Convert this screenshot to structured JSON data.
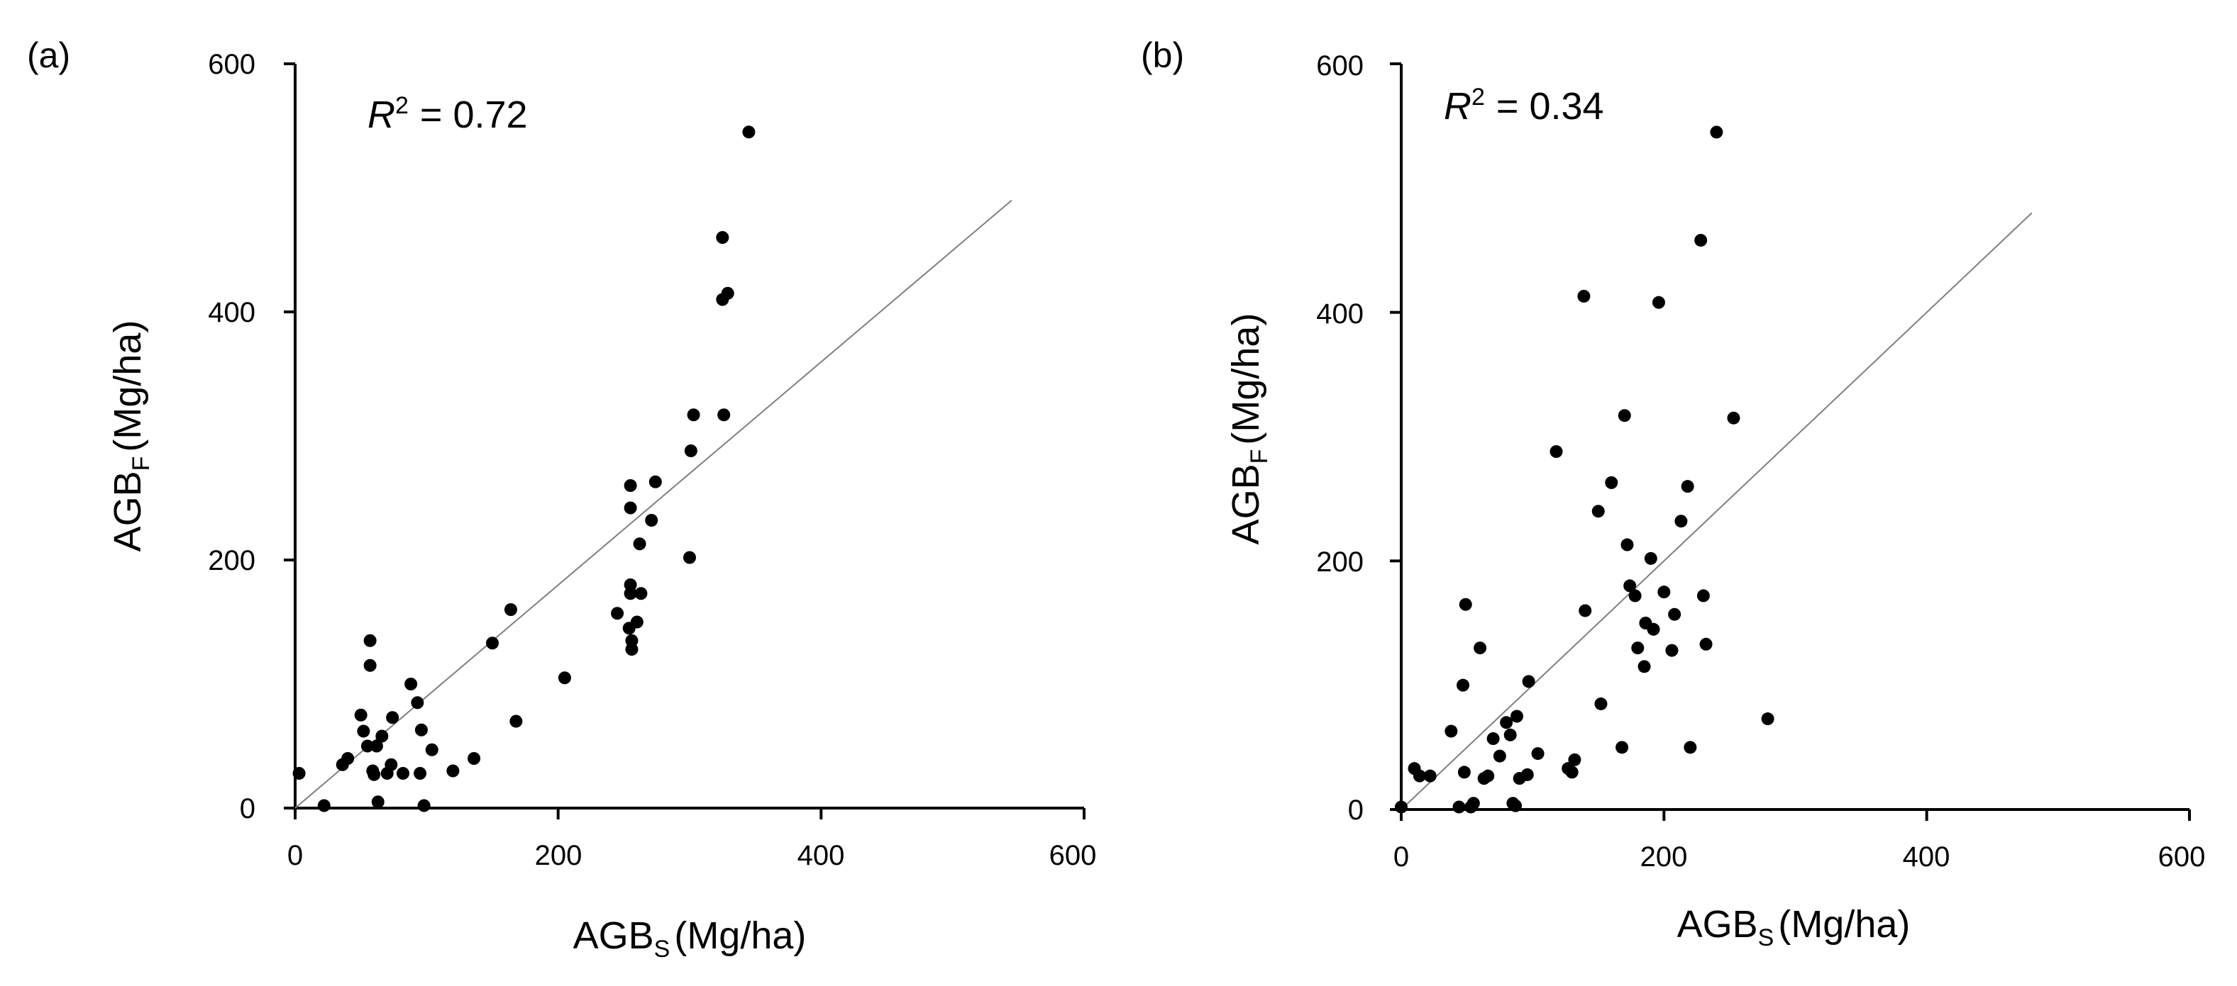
{
  "colors": {
    "axis": "#000000",
    "point": "#000000",
    "line": "#7f7f7f",
    "background": "#ffffff"
  },
  "chart_data": [
    {
      "type": "scatter",
      "panel_label": "(a)",
      "r2_symbol": "R",
      "r2_exponent": "2",
      "r2_value": "= 0.72",
      "xlabel": {
        "base": "AGB",
        "sub": "S",
        "unit": "(Mg/ha)"
      },
      "ylabel": {
        "base": "AGB",
        "sub": "F",
        "unit": "(Mg/ha)"
      },
      "xlim": [
        0,
        600
      ],
      "ylim": [
        0,
        600
      ],
      "xticks": [
        "0",
        "200",
        "400",
        "600"
      ],
      "yticks": [
        "0",
        "200",
        "400",
        "600"
      ],
      "reference_line": {
        "x": [
          0,
          545
        ],
        "y": [
          0,
          490
        ]
      },
      "points": [
        [
          3,
          28
        ],
        [
          22,
          2
        ],
        [
          36,
          35
        ],
        [
          40,
          40
        ],
        [
          50,
          75
        ],
        [
          52,
          62
        ],
        [
          55,
          50
        ],
        [
          57,
          135
        ],
        [
          57,
          115
        ],
        [
          59,
          30
        ],
        [
          60,
          27
        ],
        [
          62,
          50
        ],
        [
          63,
          5
        ],
        [
          66,
          58
        ],
        [
          70,
          28
        ],
        [
          73,
          35
        ],
        [
          74,
          73
        ],
        [
          82,
          28
        ],
        [
          88,
          100
        ],
        [
          93,
          85
        ],
        [
          95,
          28
        ],
        [
          96,
          63
        ],
        [
          98,
          2
        ],
        [
          104,
          47
        ],
        [
          120,
          30
        ],
        [
          136,
          40
        ],
        [
          150,
          133
        ],
        [
          164,
          160
        ],
        [
          168,
          70
        ],
        [
          205,
          105
        ],
        [
          245,
          157
        ],
        [
          254,
          145
        ],
        [
          255,
          180
        ],
        [
          255,
          173
        ],
        [
          255,
          260
        ],
        [
          255,
          242
        ],
        [
          256,
          135
        ],
        [
          256,
          128
        ],
        [
          260,
          150
        ],
        [
          262,
          213
        ],
        [
          263,
          173
        ],
        [
          271,
          232
        ],
        [
          274,
          263
        ],
        [
          300,
          202
        ],
        [
          301,
          288
        ],
        [
          303,
          317
        ],
        [
          325,
          460
        ],
        [
          325,
          410
        ],
        [
          326,
          317
        ],
        [
          329,
          415
        ],
        [
          345,
          545
        ]
      ]
    },
    {
      "type": "scatter",
      "panel_label": "(b)",
      "r2_symbol": "R",
      "r2_exponent": "2",
      "r2_value": "= 0.34",
      "xlabel": {
        "base": "AGB",
        "sub": "S",
        "unit": "(Mg/ha)"
      },
      "ylabel": {
        "base": "AGB",
        "sub": "F",
        "unit": "(Mg/ha)"
      },
      "xlim": [
        0,
        600
      ],
      "ylim": [
        0,
        600
      ],
      "xticks": [
        "0",
        "200",
        "400",
        "600"
      ],
      "yticks": [
        "0",
        "200",
        "400",
        "600"
      ],
      "reference_line": {
        "x": [
          0,
          480
        ],
        "y": [
          0,
          480
        ]
      },
      "points": [
        [
          0,
          2
        ],
        [
          10,
          33
        ],
        [
          14,
          27
        ],
        [
          22,
          27
        ],
        [
          38,
          63
        ],
        [
          44,
          2
        ],
        [
          47,
          100
        ],
        [
          48,
          30
        ],
        [
          49,
          165
        ],
        [
          53,
          2
        ],
        [
          55,
          5
        ],
        [
          60,
          130
        ],
        [
          63,
          25
        ],
        [
          66,
          27
        ],
        [
          70,
          57
        ],
        [
          75,
          43
        ],
        [
          80,
          70
        ],
        [
          83,
          60
        ],
        [
          85,
          5
        ],
        [
          87,
          3
        ],
        [
          88,
          75
        ],
        [
          90,
          25
        ],
        [
          96,
          28
        ],
        [
          97,
          103
        ],
        [
          104,
          45
        ],
        [
          118,
          288
        ],
        [
          127,
          33
        ],
        [
          130,
          30
        ],
        [
          132,
          40
        ],
        [
          139,
          413
        ],
        [
          140,
          160
        ],
        [
          150,
          240
        ],
        [
          152,
          85
        ],
        [
          160,
          263
        ],
        [
          168,
          50
        ],
        [
          170,
          317
        ],
        [
          172,
          213
        ],
        [
          174,
          180
        ],
        [
          178,
          172
        ],
        [
          180,
          130
        ],
        [
          185,
          115
        ],
        [
          186,
          150
        ],
        [
          190,
          202
        ],
        [
          192,
          145
        ],
        [
          196,
          408
        ],
        [
          200,
          175
        ],
        [
          206,
          128
        ],
        [
          208,
          157
        ],
        [
          213,
          232
        ],
        [
          218,
          260
        ],
        [
          220,
          50
        ],
        [
          228,
          458
        ],
        [
          230,
          172
        ],
        [
          232,
          133
        ],
        [
          240,
          545
        ],
        [
          253,
          315
        ],
        [
          279,
          73
        ]
      ]
    }
  ]
}
